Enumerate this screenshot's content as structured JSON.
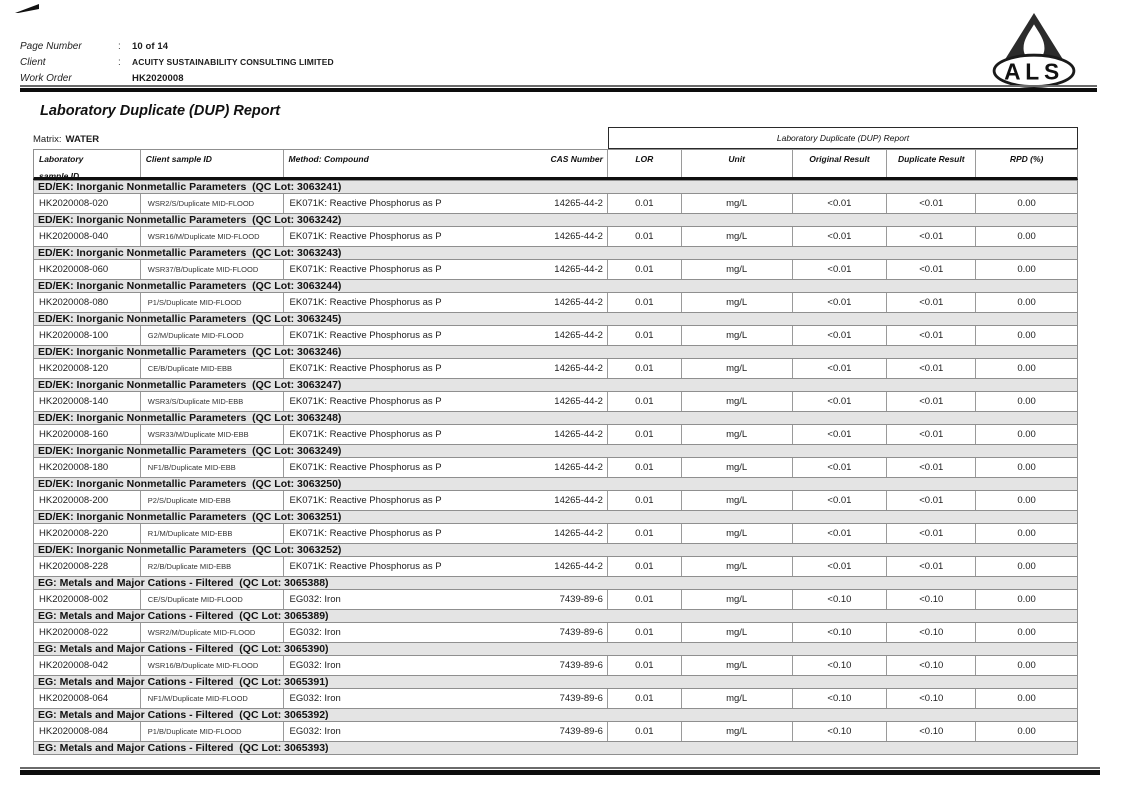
{
  "page_header": {
    "fields": [
      {
        "label": "Page Number",
        "colon": ":",
        "value": "10 of 14"
      },
      {
        "label": "Client",
        "colon": ":",
        "value": "ACUITY SUSTAINABILITY CONSULTING LIMITED"
      },
      {
        "label": "Work Order",
        "colon": "",
        "value": "HK2020008"
      }
    ],
    "logo_text": "ALS"
  },
  "report": {
    "title": "Laboratory Duplicate (DUP) Report",
    "matrix_label": "Matrix:",
    "matrix_value": "WATER",
    "span_header": "Laboratory Duplicate (DUP) Report",
    "column_headers": [
      {
        "key": "laboratory-sample-id",
        "lines": [
          "Laboratory",
          "sample ID"
        ]
      },
      {
        "key": "client-sample-id",
        "lines": [
          "Client sample ID"
        ]
      },
      {
        "key": "method-compound",
        "lines": [
          "Method: Compound"
        ]
      },
      {
        "key": "cas-number",
        "lines": [
          "CAS Number"
        ]
      },
      {
        "key": "lor",
        "lines": [
          "LOR"
        ]
      },
      {
        "key": "unit",
        "lines": [
          "Unit"
        ]
      },
      {
        "key": "original-result",
        "lines": [
          "Original Result"
        ]
      },
      {
        "key": "duplicate-result",
        "lines": [
          "Duplicate Result"
        ]
      },
      {
        "key": "rpd-percent",
        "lines": [
          "RPD (%)"
        ]
      }
    ]
  },
  "groups": [
    {
      "section": "ED/EK: Inorganic Nonmetallic Parameters  (QC Lot: 3063241)",
      "row": {
        "lab_id": "HK2020008-020",
        "client_id": "WSR2/S/Duplicate MID-FLOOD",
        "method": "EK071K: Reactive Phosphorus as P",
        "cas": "14265-44-2",
        "lor": "0.01",
        "unit": "mg/L",
        "original": "<0.01",
        "duplicate": "<0.01",
        "rpd": "0.00"
      }
    },
    {
      "section": "ED/EK: Inorganic Nonmetallic Parameters  (QC Lot: 3063242)",
      "row": {
        "lab_id": "HK2020008-040",
        "client_id": "WSR16/M/Duplicate MID-FLOOD",
        "method": "EK071K: Reactive Phosphorus as P",
        "cas": "14265-44-2",
        "lor": "0.01",
        "unit": "mg/L",
        "original": "<0.01",
        "duplicate": "<0.01",
        "rpd": "0.00"
      }
    },
    {
      "section": "ED/EK: Inorganic Nonmetallic Parameters  (QC Lot: 3063243)",
      "row": {
        "lab_id": "HK2020008-060",
        "client_id": "WSR37/B/Duplicate MID-FLOOD",
        "method": "EK071K: Reactive Phosphorus as P",
        "cas": "14265-44-2",
        "lor": "0.01",
        "unit": "mg/L",
        "original": "<0.01",
        "duplicate": "<0.01",
        "rpd": "0.00"
      }
    },
    {
      "section": "ED/EK: Inorganic Nonmetallic Parameters  (QC Lot: 3063244)",
      "row": {
        "lab_id": "HK2020008-080",
        "client_id": "P1/S/Duplicate MID-FLOOD",
        "method": "EK071K: Reactive Phosphorus as P",
        "cas": "14265-44-2",
        "lor": "0.01",
        "unit": "mg/L",
        "original": "<0.01",
        "duplicate": "<0.01",
        "rpd": "0.00"
      }
    },
    {
      "section": "ED/EK: Inorganic Nonmetallic Parameters  (QC Lot: 3063245)",
      "row": {
        "lab_id": "HK2020008-100",
        "client_id": "G2/M/Duplicate MID-FLOOD",
        "method": "EK071K: Reactive Phosphorus as P",
        "cas": "14265-44-2",
        "lor": "0.01",
        "unit": "mg/L",
        "original": "<0.01",
        "duplicate": "<0.01",
        "rpd": "0.00"
      }
    },
    {
      "section": "ED/EK: Inorganic Nonmetallic Parameters  (QC Lot: 3063246)",
      "row": {
        "lab_id": "HK2020008-120",
        "client_id": "CE/B/Duplicate MID-EBB",
        "method": "EK071K: Reactive Phosphorus as P",
        "cas": "14265-44-2",
        "lor": "0.01",
        "unit": "mg/L",
        "original": "<0.01",
        "duplicate": "<0.01",
        "rpd": "0.00"
      }
    },
    {
      "section": "ED/EK: Inorganic Nonmetallic Parameters  (QC Lot: 3063247)",
      "row": {
        "lab_id": "HK2020008-140",
        "client_id": "WSR3/S/Duplicate MID-EBB",
        "method": "EK071K: Reactive Phosphorus as P",
        "cas": "14265-44-2",
        "lor": "0.01",
        "unit": "mg/L",
        "original": "<0.01",
        "duplicate": "<0.01",
        "rpd": "0.00"
      }
    },
    {
      "section": "ED/EK: Inorganic Nonmetallic Parameters  (QC Lot: 3063248)",
      "row": {
        "lab_id": "HK2020008-160",
        "client_id": "WSR33/M/Duplicate MID-EBB",
        "method": "EK071K: Reactive Phosphorus as P",
        "cas": "14265-44-2",
        "lor": "0.01",
        "unit": "mg/L",
        "original": "<0.01",
        "duplicate": "<0.01",
        "rpd": "0.00"
      }
    },
    {
      "section": "ED/EK: Inorganic Nonmetallic Parameters  (QC Lot: 3063249)",
      "row": {
        "lab_id": "HK2020008-180",
        "client_id": "NF1/B/Duplicate MID-EBB",
        "method": "EK071K: Reactive Phosphorus as P",
        "cas": "14265-44-2",
        "lor": "0.01",
        "unit": "mg/L",
        "original": "<0.01",
        "duplicate": "<0.01",
        "rpd": "0.00"
      }
    },
    {
      "section": "ED/EK: Inorganic Nonmetallic Parameters  (QC Lot: 3063250)",
      "row": {
        "lab_id": "HK2020008-200",
        "client_id": "P2/S/Duplicate MID-EBB",
        "method": "EK071K: Reactive Phosphorus as P",
        "cas": "14265-44-2",
        "lor": "0.01",
        "unit": "mg/L",
        "original": "<0.01",
        "duplicate": "<0.01",
        "rpd": "0.00"
      }
    },
    {
      "section": "ED/EK: Inorganic Nonmetallic Parameters  (QC Lot: 3063251)",
      "row": {
        "lab_id": "HK2020008-220",
        "client_id": "R1/M/Duplicate MID-EBB",
        "method": "EK071K: Reactive Phosphorus as P",
        "cas": "14265-44-2",
        "lor": "0.01",
        "unit": "mg/L",
        "original": "<0.01",
        "duplicate": "<0.01",
        "rpd": "0.00"
      }
    },
    {
      "section": "ED/EK: Inorganic Nonmetallic Parameters  (QC Lot: 3063252)",
      "row": {
        "lab_id": "HK2020008-228",
        "client_id": "R2/B/Duplicate MID-EBB",
        "method": "EK071K: Reactive Phosphorus as P",
        "cas": "14265-44-2",
        "lor": "0.01",
        "unit": "mg/L",
        "original": "<0.01",
        "duplicate": "<0.01",
        "rpd": "0.00"
      }
    },
    {
      "section": "EG: Metals and Major Cations - Filtered  (QC Lot: 3065388)",
      "row": {
        "lab_id": "HK2020008-002",
        "client_id": "CE/S/Duplicate MID-FLOOD",
        "method": "EG032: Iron",
        "cas": "7439-89-6",
        "lor": "0.01",
        "unit": "mg/L",
        "original": "<0.10",
        "duplicate": "<0.10",
        "rpd": "0.00"
      }
    },
    {
      "section": "EG: Metals and Major Cations - Filtered  (QC Lot: 3065389)",
      "row": {
        "lab_id": "HK2020008-022",
        "client_id": "WSR2/M/Duplicate MID-FLOOD",
        "method": "EG032: Iron",
        "cas": "7439-89-6",
        "lor": "0.01",
        "unit": "mg/L",
        "original": "<0.10",
        "duplicate": "<0.10",
        "rpd": "0.00"
      }
    },
    {
      "section": "EG: Metals and Major Cations - Filtered  (QC Lot: 3065390)",
      "row": {
        "lab_id": "HK2020008-042",
        "client_id": "WSR16/B/Duplicate MID-FLOOD",
        "method": "EG032: Iron",
        "cas": "7439-89-6",
        "lor": "0.01",
        "unit": "mg/L",
        "original": "<0.10",
        "duplicate": "<0.10",
        "rpd": "0.00"
      }
    },
    {
      "section": "EG: Metals and Major Cations - Filtered  (QC Lot: 3065391)",
      "row": {
        "lab_id": "HK2020008-064",
        "client_id": "NF1/M/Duplicate MID-FLOOD",
        "method": "EG032: Iron",
        "cas": "7439-89-6",
        "lor": "0.01",
        "unit": "mg/L",
        "original": "<0.10",
        "duplicate": "<0.10",
        "rpd": "0.00"
      }
    },
    {
      "section": "EG: Metals and Major Cations - Filtered  (QC Lot: 3065392)",
      "row": {
        "lab_id": "HK2020008-084",
        "client_id": "P1/B/Duplicate MID-FLOOD",
        "method": "EG032: Iron",
        "cas": "7439-89-6",
        "lor": "0.01",
        "unit": "mg/L",
        "original": "<0.10",
        "duplicate": "<0.10",
        "rpd": "0.00"
      }
    },
    {
      "section": "EG: Metals and Major Cations - Filtered  (QC Lot: 3065393)",
      "row": null
    }
  ]
}
